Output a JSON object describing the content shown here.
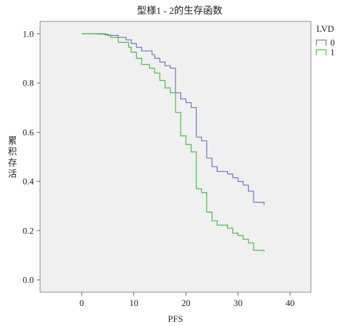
{
  "chart_data": {
    "type": "line",
    "title": "型様1 - 2的生存函数",
    "xlabel": "PFS",
    "ylabel": "累积存活",
    "xlim": [
      -8,
      44
    ],
    "ylim": [
      -0.05,
      1.05
    ],
    "x_ticks": [
      0,
      10,
      20,
      30,
      40
    ],
    "y_ticks": [
      0.0,
      0.2,
      0.4,
      0.6,
      0.8,
      1.0
    ],
    "x_tick_labels": [
      "0",
      "10",
      "20",
      "30",
      "40"
    ],
    "y_tick_labels": [
      "0.0",
      "0.2",
      "0.4",
      "0.6",
      "0.8",
      "1.0"
    ],
    "legend": {
      "title": "LVD",
      "placement": "right"
    },
    "grid": false,
    "background_color": "#f0f0f0",
    "series": [
      {
        "name": "0",
        "color": "#6f7fbf",
        "step_points": [
          [
            0,
            1.0
          ],
          [
            3,
            1.0
          ],
          [
            3,
            0.998
          ],
          [
            5,
            0.998
          ],
          [
            5,
            0.993
          ],
          [
            7,
            0.993
          ],
          [
            7,
            0.985
          ],
          [
            8.5,
            0.985
          ],
          [
            8.5,
            0.975
          ],
          [
            9.5,
            0.975
          ],
          [
            9.5,
            0.96
          ],
          [
            10.5,
            0.96
          ],
          [
            10.5,
            0.945
          ],
          [
            11.5,
            0.945
          ],
          [
            11.5,
            0.93
          ],
          [
            13.5,
            0.93
          ],
          [
            13.5,
            0.915
          ],
          [
            14,
            0.915
          ],
          [
            14,
            0.9
          ],
          [
            15,
            0.9
          ],
          [
            15,
            0.885
          ],
          [
            16,
            0.885
          ],
          [
            16,
            0.87
          ],
          [
            17,
            0.87
          ],
          [
            17,
            0.86
          ],
          [
            18,
            0.86
          ],
          [
            18,
            0.76
          ],
          [
            19,
            0.76
          ],
          [
            19,
            0.735
          ],
          [
            20,
            0.735
          ],
          [
            20,
            0.72
          ],
          [
            21,
            0.72
          ],
          [
            21,
            0.7
          ],
          [
            22,
            0.7
          ],
          [
            22,
            0.58
          ],
          [
            23,
            0.58
          ],
          [
            23,
            0.565
          ],
          [
            24,
            0.565
          ],
          [
            24,
            0.495
          ],
          [
            25,
            0.495
          ],
          [
            25,
            0.46
          ],
          [
            26,
            0.46
          ],
          [
            26,
            0.44
          ],
          [
            28,
            0.44
          ],
          [
            28,
            0.43
          ],
          [
            29,
            0.43
          ],
          [
            29,
            0.415
          ],
          [
            30,
            0.415
          ],
          [
            30,
            0.4
          ],
          [
            31,
            0.4
          ],
          [
            31,
            0.385
          ],
          [
            32,
            0.385
          ],
          [
            32,
            0.36
          ],
          [
            33,
            0.36
          ],
          [
            33,
            0.315
          ],
          [
            35,
            0.315
          ],
          [
            35,
            0.305
          ]
        ]
      },
      {
        "name": "1",
        "color": "#55bb55",
        "step_points": [
          [
            0,
            1.0
          ],
          [
            4.5,
            1.0
          ],
          [
            4.5,
            0.995
          ],
          [
            5.5,
            0.995
          ],
          [
            5.5,
            0.985
          ],
          [
            7,
            0.985
          ],
          [
            7,
            0.965
          ],
          [
            9,
            0.965
          ],
          [
            9,
            0.945
          ],
          [
            9.5,
            0.945
          ],
          [
            9.5,
            0.925
          ],
          [
            10.5,
            0.925
          ],
          [
            10.5,
            0.9
          ],
          [
            11.5,
            0.9
          ],
          [
            11.5,
            0.875
          ],
          [
            13,
            0.875
          ],
          [
            13,
            0.86
          ],
          [
            14,
            0.86
          ],
          [
            14,
            0.84
          ],
          [
            15,
            0.84
          ],
          [
            15,
            0.81
          ],
          [
            16,
            0.81
          ],
          [
            16,
            0.78
          ],
          [
            17,
            0.78
          ],
          [
            17,
            0.76
          ],
          [
            18,
            0.76
          ],
          [
            18,
            0.68
          ],
          [
            19,
            0.68
          ],
          [
            19,
            0.585
          ],
          [
            20,
            0.585
          ],
          [
            20,
            0.55
          ],
          [
            21,
            0.55
          ],
          [
            21,
            0.52
          ],
          [
            22,
            0.52
          ],
          [
            22,
            0.37
          ],
          [
            23,
            0.37
          ],
          [
            23,
            0.355
          ],
          [
            24,
            0.355
          ],
          [
            24,
            0.275
          ],
          [
            25,
            0.275
          ],
          [
            25,
            0.24
          ],
          [
            26,
            0.24
          ],
          [
            26,
            0.222
          ],
          [
            28,
            0.222
          ],
          [
            28,
            0.21
          ],
          [
            29,
            0.21
          ],
          [
            29,
            0.19
          ],
          [
            30,
            0.19
          ],
          [
            30,
            0.18
          ],
          [
            31,
            0.18
          ],
          [
            31,
            0.165
          ],
          [
            32,
            0.165
          ],
          [
            32,
            0.15
          ],
          [
            33,
            0.15
          ],
          [
            33,
            0.12
          ],
          [
            35,
            0.12
          ],
          [
            35,
            0.115
          ]
        ]
      }
    ]
  }
}
